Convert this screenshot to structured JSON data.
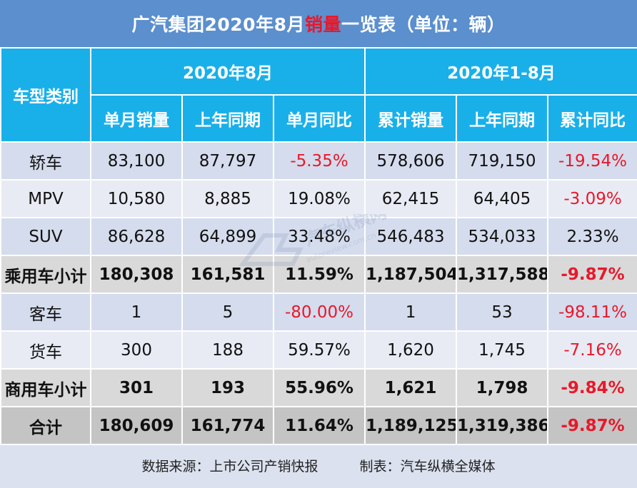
{
  "title": {
    "prefix": "广汽集团2020年8月",
    "highlight": "销量",
    "suffix": "一览表（单位：辆）"
  },
  "header": {
    "category": "车型类别",
    "group_month": "2020年8月",
    "group_ytd": "2020年1-8月",
    "columns": [
      "单月销量",
      "上年同期",
      "单月同比",
      "累计销量",
      "上年同期",
      "累计同比"
    ]
  },
  "rows": [
    {
      "name": "轿车",
      "values": [
        "83,100",
        "87,797",
        "-5.35%",
        "578,606",
        "719,150",
        "-19.54%"
      ]
    },
    {
      "name": "MPV",
      "values": [
        "10,580",
        "8,885",
        "19.08%",
        "62,415",
        "64,405",
        "-3.09%"
      ]
    },
    {
      "name": "SUV",
      "values": [
        "86,628",
        "64,899",
        "33.48%",
        "546,483",
        "534,033",
        "2.33%"
      ]
    },
    {
      "name": "乘用车小计",
      "values": [
        "180,308",
        "161,581",
        "11.59%",
        "1,187,504",
        "1,317,588",
        "-9.87%"
      ]
    },
    {
      "name": "客车",
      "values": [
        "1",
        "5",
        "-80.00%",
        "1",
        "53",
        "-98.11%"
      ]
    },
    {
      "name": "货车",
      "values": [
        "300",
        "188",
        "59.57%",
        "1,620",
        "1,745",
        "-7.16%"
      ]
    },
    {
      "name": "商用车小计",
      "values": [
        "301",
        "193",
        "55.96%",
        "1,621",
        "1,798",
        "-9.84%"
      ]
    },
    {
      "name": "合计",
      "values": [
        "180,609",
        "161,774",
        "11.64%",
        "1,189,125",
        "1,319,386",
        "-9.87%"
      ]
    }
  ],
  "footer": {
    "source": "数据来源：上市公司产销快报",
    "maker": "制表：汽车纵横全媒体"
  },
  "colors": {
    "title_bg": "#5b8fce",
    "header_bg": "#19b0ea",
    "negative": "#e8182a",
    "highlight": "#e8182a"
  },
  "watermark": {
    "text": "汽车纵横网",
    "subtext": "autoreview.com.cn"
  }
}
